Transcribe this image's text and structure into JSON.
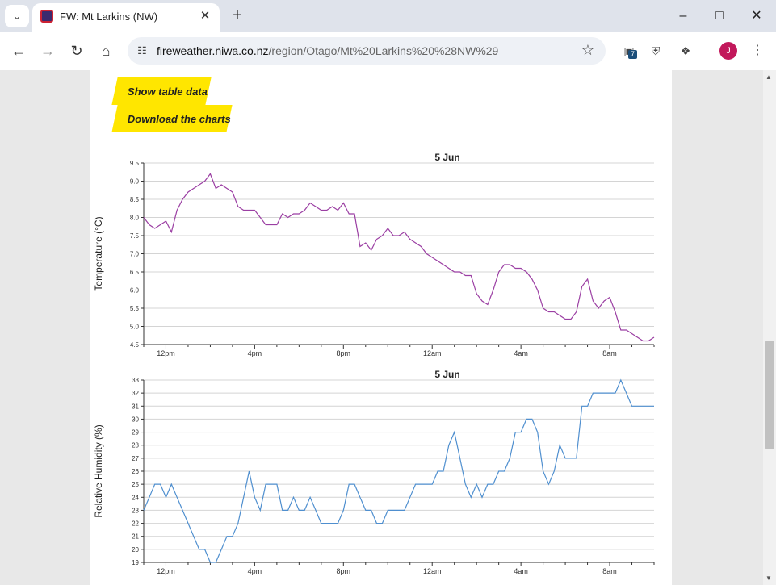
{
  "browser": {
    "tab_title": "FW: Mt Larkins (NW)",
    "url_host": "fireweather.niwa.co.nz",
    "url_path": "/region/Otago/Mt%20Larkins%20%28NW%29",
    "extension_badge": "7",
    "avatar_letter": "J",
    "icons": [
      "chevron-down-icon",
      "close-icon",
      "plus-icon",
      "minimize-icon",
      "maximize-icon",
      "back-icon",
      "forward-icon",
      "reload-icon",
      "home-icon",
      "site-info-icon",
      "star-icon",
      "extension-icon",
      "puzzle-icon",
      "menu-icon"
    ]
  },
  "buttons": {
    "show_table": "Show table data",
    "download": "Download the charts"
  },
  "chart_data": [
    {
      "type": "line",
      "title": "5 Jun",
      "ylabel": "Temperature (°C)",
      "color": "#9b3fa3",
      "ylim": [
        4.5,
        9.5
      ],
      "yticks": [
        "4.5",
        "5.0",
        "5.5",
        "6.0",
        "6.5",
        "7.0",
        "7.5",
        "8.0",
        "8.5",
        "9.0",
        "9.5"
      ],
      "xticks": [
        "12pm",
        "4pm",
        "8pm",
        "12am",
        "4am",
        "8am"
      ],
      "xtick_hours": [
        12,
        16,
        20,
        24,
        28,
        32
      ],
      "xlim": [
        11,
        34
      ],
      "x": [
        11,
        11.25,
        11.5,
        11.75,
        12,
        12.25,
        12.5,
        12.75,
        13,
        13.25,
        13.5,
        13.75,
        14,
        14.25,
        14.5,
        14.75,
        15,
        15.25,
        15.5,
        15.75,
        16,
        16.25,
        16.5,
        16.75,
        17,
        17.25,
        17.5,
        17.75,
        18,
        18.25,
        18.5,
        18.75,
        19,
        19.25,
        19.5,
        19.75,
        20,
        20.25,
        20.5,
        20.75,
        21,
        21.25,
        21.5,
        21.75,
        22,
        22.25,
        22.5,
        22.75,
        23,
        23.25,
        23.5,
        23.75,
        24,
        24.25,
        24.5,
        24.75,
        25,
        25.25,
        25.5,
        25.75,
        26,
        26.25,
        26.5,
        26.75,
        27,
        27.25,
        27.5,
        27.75,
        28,
        28.25,
        28.5,
        28.75,
        29,
        29.25,
        29.5,
        29.75,
        30,
        30.25,
        30.5,
        30.75,
        31,
        31.25,
        31.5,
        31.75,
        32,
        32.25,
        32.5,
        32.75,
        33,
        33.25,
        33.5,
        33.75,
        34
      ],
      "values": [
        8.0,
        7.8,
        7.7,
        7.8,
        7.9,
        7.6,
        8.2,
        8.5,
        8.7,
        8.8,
        8.9,
        9.0,
        9.2,
        8.8,
        8.9,
        8.8,
        8.7,
        8.3,
        8.2,
        8.2,
        8.2,
        8.0,
        7.8,
        7.8,
        7.8,
        8.1,
        8.0,
        8.1,
        8.1,
        8.2,
        8.4,
        8.3,
        8.2,
        8.2,
        8.3,
        8.2,
        8.4,
        8.1,
        8.1,
        7.2,
        7.3,
        7.1,
        7.4,
        7.5,
        7.7,
        7.5,
        7.5,
        7.6,
        7.4,
        7.3,
        7.2,
        7.0,
        6.9,
        6.8,
        6.7,
        6.6,
        6.5,
        6.5,
        6.4,
        6.4,
        5.9,
        5.7,
        5.6,
        6.0,
        6.5,
        6.7,
        6.7,
        6.6,
        6.6,
        6.5,
        6.3,
        6.0,
        5.5,
        5.4,
        5.4,
        5.3,
        5.2,
        5.2,
        5.4,
        6.1,
        6.3,
        5.7,
        5.5,
        5.7,
        5.8,
        5.4,
        4.9,
        4.9,
        4.8,
        4.7,
        4.6,
        4.6,
        4.7
      ]
    },
    {
      "type": "line",
      "title": "5 Jun",
      "ylabel": "Relative Humidity (%)",
      "color": "#4f8fcf",
      "ylim": [
        19,
        33
      ],
      "yticks": [
        "19",
        "20",
        "21",
        "22",
        "23",
        "24",
        "25",
        "26",
        "27",
        "28",
        "29",
        "30",
        "31",
        "32",
        "33"
      ],
      "xticks": [
        "12pm",
        "4pm",
        "8pm",
        "12am",
        "4am",
        "8am"
      ],
      "xtick_hours": [
        12,
        16,
        20,
        24,
        28,
        32
      ],
      "xlim": [
        11,
        34
      ],
      "x": [
        11,
        11.25,
        11.5,
        11.75,
        12,
        12.25,
        12.5,
        12.75,
        13,
        13.25,
        13.5,
        13.75,
        14,
        14.25,
        14.5,
        14.75,
        15,
        15.25,
        15.5,
        15.75,
        16,
        16.25,
        16.5,
        16.75,
        17,
        17.25,
        17.5,
        17.75,
        18,
        18.25,
        18.5,
        18.75,
        19,
        19.25,
        19.5,
        19.75,
        20,
        20.25,
        20.5,
        20.75,
        21,
        21.25,
        21.5,
        21.75,
        22,
        22.25,
        22.5,
        22.75,
        23,
        23.25,
        23.5,
        23.75,
        24,
        24.25,
        24.5,
        24.75,
        25,
        25.25,
        25.5,
        25.75,
        26,
        26.25,
        26.5,
        26.75,
        27,
        27.25,
        27.5,
        27.75,
        28,
        28.25,
        28.5,
        28.75,
        29,
        29.25,
        29.5,
        29.75,
        30,
        30.25,
        30.5,
        30.75,
        31,
        31.25,
        31.5,
        31.75,
        32,
        32.25,
        32.5,
        32.75,
        33,
        33.25,
        33.5,
        33.75,
        34
      ],
      "values": [
        23,
        24,
        25,
        25,
        24,
        25,
        24,
        23,
        22,
        21,
        20,
        20,
        19,
        19,
        20,
        21,
        21,
        22,
        24,
        26,
        24,
        23,
        25,
        25,
        25,
        23,
        23,
        24,
        23,
        23,
        24,
        23,
        22,
        22,
        22,
        22,
        23,
        25,
        25,
        24,
        23,
        23,
        22,
        22,
        23,
        23,
        23,
        23,
        24,
        25,
        25,
        25,
        25,
        26,
        26,
        28,
        29,
        27,
        25,
        24,
        25,
        24,
        25,
        25,
        26,
        26,
        27,
        29,
        29,
        30,
        30,
        29,
        26,
        25,
        26,
        28,
        27,
        27,
        27,
        31,
        31,
        32,
        32,
        32,
        32,
        32,
        33,
        32,
        31,
        31,
        31,
        31,
        31
      ]
    }
  ]
}
